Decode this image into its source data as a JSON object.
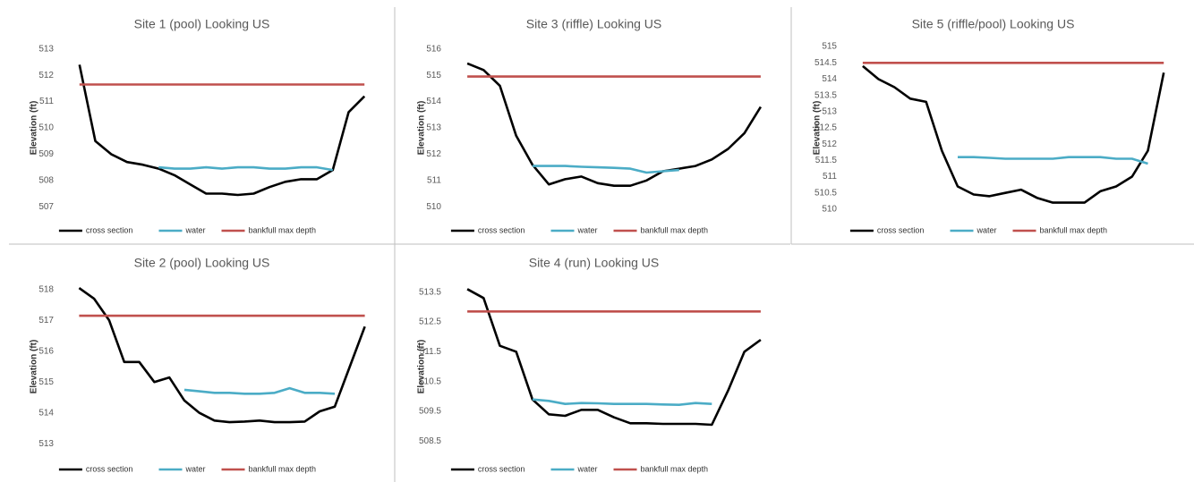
{
  "chart_data": [
    {
      "type": "line",
      "title": "Site 1 (pool) Looking US",
      "ylabel": "Elevation (ft)",
      "legend": "bottom",
      "categories": [
        null,
        null,
        null,
        null,
        null,
        null,
        null,
        null,
        null,
        null,
        null,
        null,
        null,
        null,
        null,
        null,
        null,
        null,
        null
      ],
      "ylim": [
        506.6,
        513.4
      ],
      "yticks": [
        507,
        508,
        509,
        510,
        511,
        512,
        513
      ],
      "series": [
        {
          "name": "cross section",
          "color": "#000000",
          "values": [
            512.4,
            509.5,
            509.0,
            508.7,
            508.6,
            508.45,
            508.2,
            507.85,
            507.5,
            507.5,
            507.45,
            507.5,
            507.75,
            507.95,
            508.05,
            508.05,
            508.4,
            510.6,
            511.2
          ]
        },
        {
          "name": "water",
          "color": "#4bacc6",
          "values": [
            null,
            null,
            null,
            null,
            null,
            508.5,
            508.45,
            508.45,
            508.5,
            508.45,
            508.5,
            508.5,
            508.45,
            508.45,
            508.5,
            508.5,
            508.4,
            null,
            null
          ]
        },
        {
          "name": "bankfull max depth",
          "color": "#c0504d",
          "values": [
            511.65,
            511.65,
            511.65,
            511.65,
            511.65,
            511.65,
            511.65,
            511.65,
            511.65,
            511.65,
            511.65,
            511.65,
            511.65,
            511.65,
            511.65,
            511.65,
            511.65,
            511.65,
            511.65
          ]
        }
      ]
    },
    {
      "type": "line",
      "title": "Site 3 (riffle) Looking US",
      "ylabel": "Elevation (ft)",
      "legend": "bottom",
      "categories": [
        null,
        null,
        null,
        null,
        null,
        null,
        null,
        null,
        null,
        null,
        null,
        null,
        null,
        null,
        null,
        null,
        null,
        null,
        null
      ],
      "ylim": [
        509.6,
        516.4
      ],
      "yticks": [
        510,
        511,
        512,
        513,
        514,
        515,
        516
      ],
      "series": [
        {
          "name": "cross section",
          "color": "#000000",
          "values": [
            515.45,
            515.2,
            514.6,
            512.7,
            511.6,
            510.85,
            511.05,
            511.15,
            510.9,
            510.8,
            510.8,
            511.0,
            511.35,
            511.45,
            511.55,
            511.8,
            512.2,
            512.8,
            513.8
          ]
        },
        {
          "name": "water",
          "color": "#4bacc6",
          "values": [
            null,
            null,
            null,
            null,
            511.55,
            511.55,
            511.55,
            511.52,
            511.5,
            511.48,
            511.45,
            511.3,
            511.35,
            511.4,
            null,
            null,
            null,
            null,
            null
          ]
        },
        {
          "name": "bankfull max depth",
          "color": "#c0504d",
          "values": [
            514.95,
            514.95,
            514.95,
            514.95,
            514.95,
            514.95,
            514.95,
            514.95,
            514.95,
            514.95,
            514.95,
            514.95,
            514.95,
            514.95,
            514.95,
            514.95,
            514.95,
            514.95,
            514.95
          ]
        }
      ]
    },
    {
      "type": "line",
      "title": "Site 5 (riffle/pool) Looking US",
      "ylabel": "Elevation (ft)",
      "legend": "bottom",
      "categories": [
        null,
        null,
        null,
        null,
        null,
        null,
        null,
        null,
        null,
        null,
        null,
        null,
        null,
        null,
        null,
        null,
        null,
        null,
        null,
        null
      ],
      "ylim": [
        509.75,
        515.25
      ],
      "yticks": [
        510,
        510.5,
        511,
        511.5,
        512,
        512.5,
        513,
        513.5,
        514,
        514.5,
        515
      ],
      "series": [
        {
          "name": "cross section",
          "color": "#000000",
          "values": [
            514.4,
            514.0,
            513.75,
            513.4,
            513.3,
            511.8,
            510.7,
            510.45,
            510.4,
            510.5,
            510.6,
            510.35,
            510.2,
            510.2,
            510.2,
            510.55,
            510.7,
            511.0,
            511.8,
            514.2
          ]
        },
        {
          "name": "water",
          "color": "#4bacc6",
          "values": [
            null,
            null,
            null,
            null,
            null,
            null,
            511.6,
            511.6,
            511.58,
            511.55,
            511.55,
            511.55,
            511.55,
            511.6,
            511.6,
            511.6,
            511.55,
            511.55,
            511.4,
            null
          ]
        },
        {
          "name": "bankfull max depth",
          "color": "#c0504d",
          "values": [
            514.5,
            514.5,
            514.5,
            514.5,
            514.5,
            514.5,
            514.5,
            514.5,
            514.5,
            514.5,
            514.5,
            514.5,
            514.5,
            514.5,
            514.5,
            514.5,
            514.5,
            514.5,
            514.5,
            514.5
          ]
        }
      ]
    },
    {
      "type": "line",
      "title": "Site 2 (pool) Looking US",
      "ylabel": "Elevation (ft)",
      "legend": "bottom",
      "categories": [
        null,
        null,
        null,
        null,
        null,
        null,
        null,
        null,
        null,
        null,
        null,
        null,
        null,
        null,
        null,
        null,
        null,
        null,
        null,
        null
      ],
      "ylim": [
        512.6,
        518.4
      ],
      "yticks": [
        513,
        514,
        515,
        516,
        517,
        518
      ],
      "series": [
        {
          "name": "cross section",
          "color": "#000000",
          "values": [
            518.05,
            517.7,
            517.0,
            515.65,
            515.65,
            515.0,
            515.15,
            514.4,
            514.0,
            513.75,
            513.7,
            513.72,
            513.75,
            513.7,
            513.7,
            513.72,
            514.05,
            514.2,
            515.5,
            516.8
          ]
        },
        {
          "name": "water",
          "color": "#4bacc6",
          "values": [
            null,
            null,
            null,
            null,
            null,
            null,
            null,
            514.75,
            514.7,
            514.65,
            514.65,
            514.62,
            514.62,
            514.65,
            514.8,
            514.65,
            514.65,
            514.62,
            null,
            null
          ]
        },
        {
          "name": "bankfull max depth",
          "color": "#c0504d",
          "values": [
            517.15,
            517.15,
            517.15,
            517.15,
            517.15,
            517.15,
            517.15,
            517.15,
            517.15,
            517.15,
            517.15,
            517.15,
            517.15,
            517.15,
            517.15,
            517.15,
            517.15,
            517.15,
            517.15,
            517.15
          ]
        }
      ]
    },
    {
      "type": "line",
      "title": "Site 4 (run) Looking US",
      "ylabel": "Elevation (ft)",
      "legend": "bottom",
      "categories": [
        null,
        null,
        null,
        null,
        null,
        null,
        null,
        null,
        null,
        null,
        null,
        null,
        null,
        null,
        null,
        null,
        null,
        null,
        null
      ],
      "ylim": [
        508.0,
        514.0
      ],
      "yticks": [
        508.5,
        509.5,
        510.5,
        511.5,
        512.5,
        513.5
      ],
      "series": [
        {
          "name": "cross section",
          "color": "#000000",
          "values": [
            513.6,
            513.3,
            511.7,
            511.5,
            509.9,
            509.4,
            509.35,
            509.55,
            509.55,
            509.3,
            509.1,
            509.1,
            509.08,
            509.08,
            509.08,
            509.05,
            510.2,
            511.5,
            511.9
          ]
        },
        {
          "name": "water",
          "color": "#4bacc6",
          "values": [
            null,
            null,
            null,
            null,
            509.9,
            509.85,
            509.75,
            509.78,
            509.77,
            509.75,
            509.75,
            509.75,
            509.73,
            509.72,
            509.78,
            509.75,
            null,
            null,
            null
          ]
        },
        {
          "name": "bankfull max depth",
          "color": "#c0504d",
          "values": [
            512.85,
            512.85,
            512.85,
            512.85,
            512.85,
            512.85,
            512.85,
            512.85,
            512.85,
            512.85,
            512.85,
            512.85,
            512.85,
            512.85,
            512.85,
            512.85,
            512.85,
            512.85,
            512.85
          ]
        }
      ]
    }
  ]
}
